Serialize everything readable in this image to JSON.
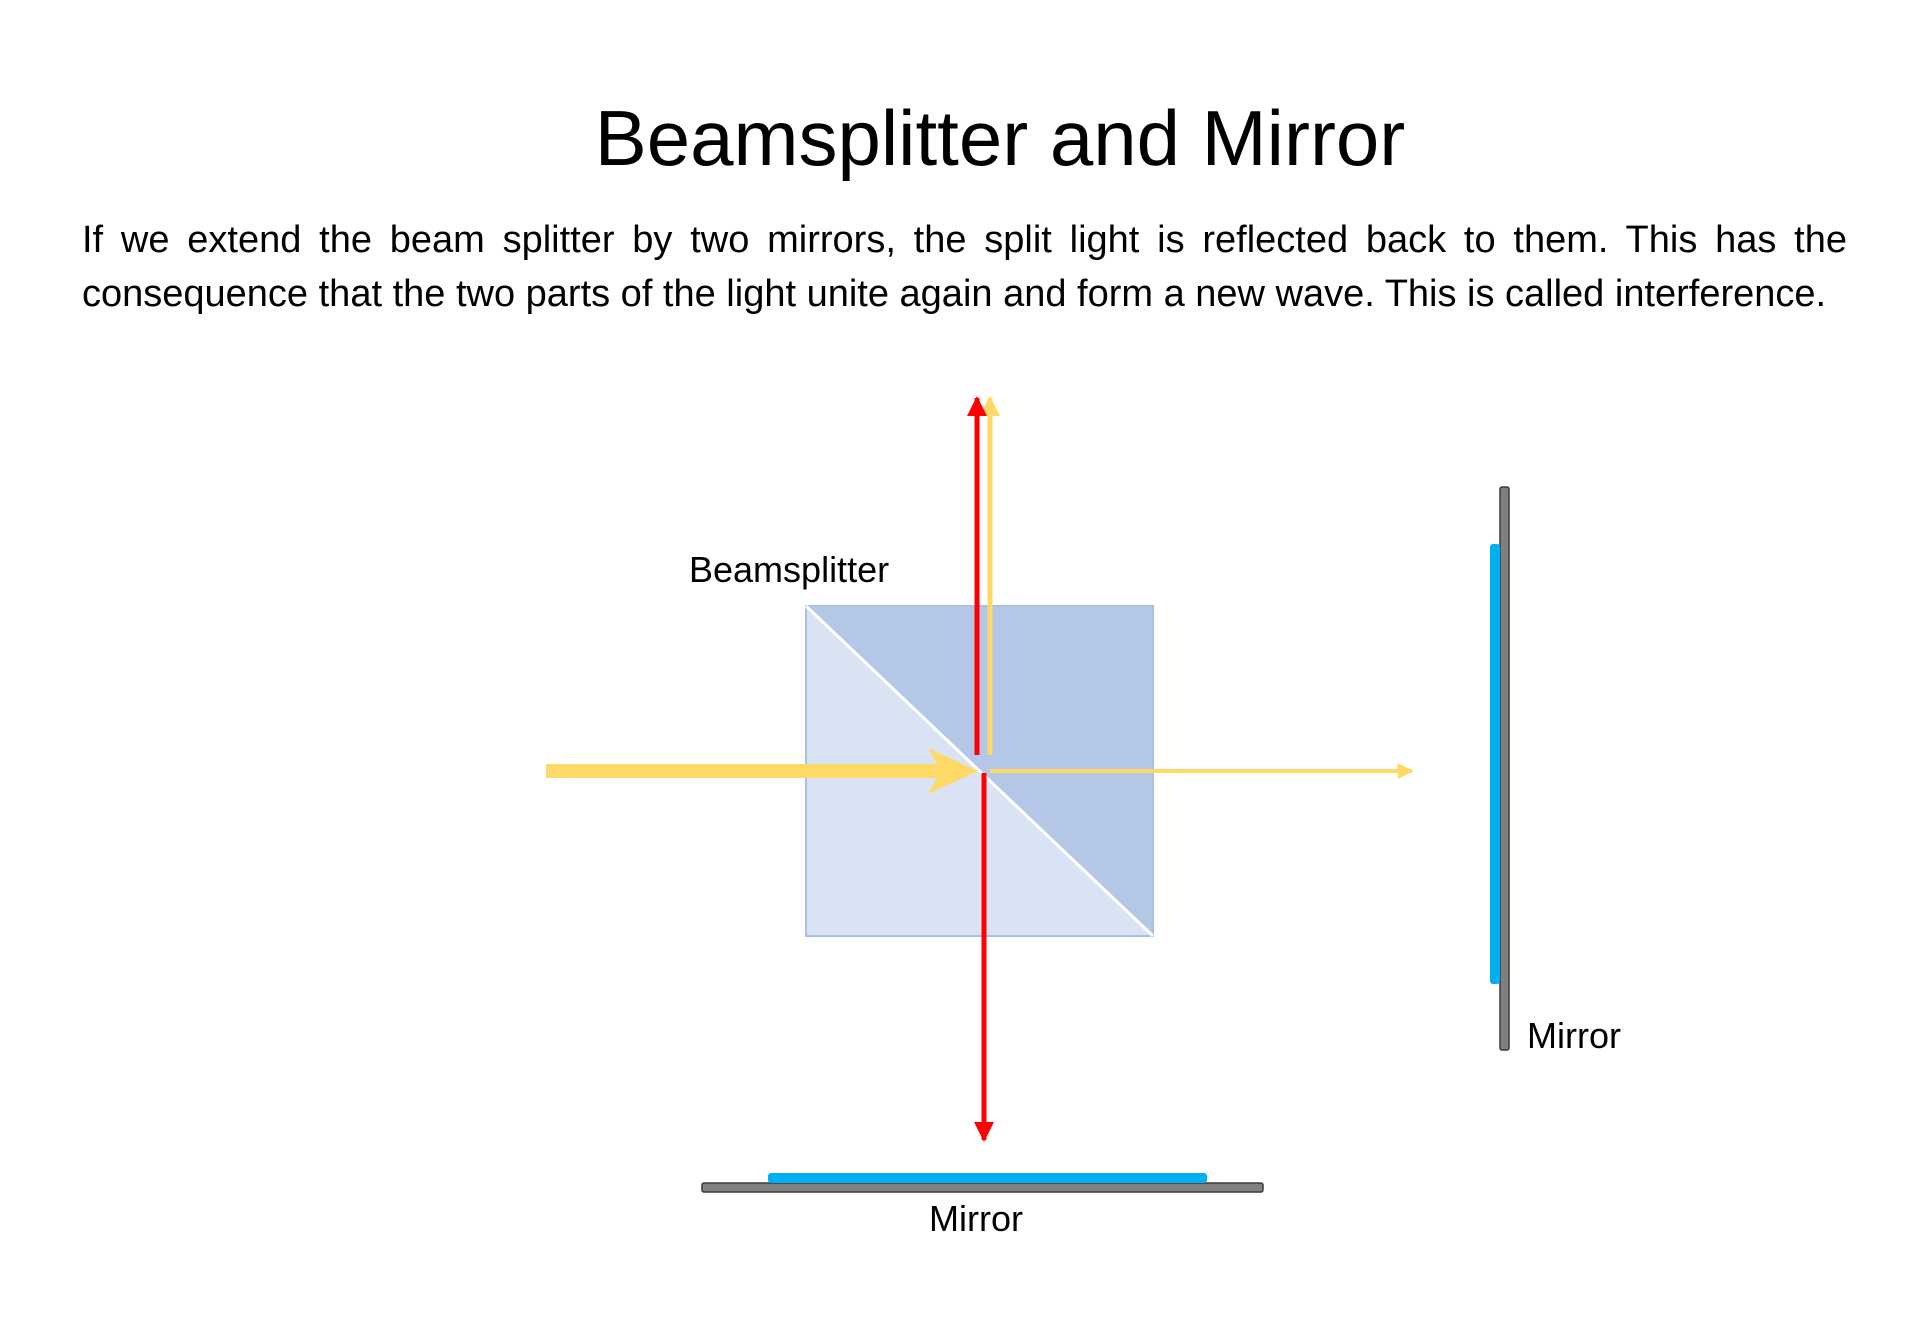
{
  "slide": {
    "title": "Beamsplitter and Mirror",
    "body": "If we extend the beam splitter by two mirrors, the split light is reflected back to them. This has the consequence that the two parts of the light unite again and form a new wave. This is called interference."
  },
  "diagram": {
    "beamsplitter_label": "Beamsplitter",
    "right_mirror_label": "Mirror",
    "bottom_mirror_label": "Mirror"
  },
  "colors": {
    "cube_light": "#dae3f3",
    "cube_dark": "#b4c7e7",
    "cube_edge": "#a9c0e6",
    "incoming_beam": "#ffd966",
    "reflected_beam": "#ff0000",
    "mirror_coating": "#00b0f0",
    "mirror_body": "#808080"
  }
}
